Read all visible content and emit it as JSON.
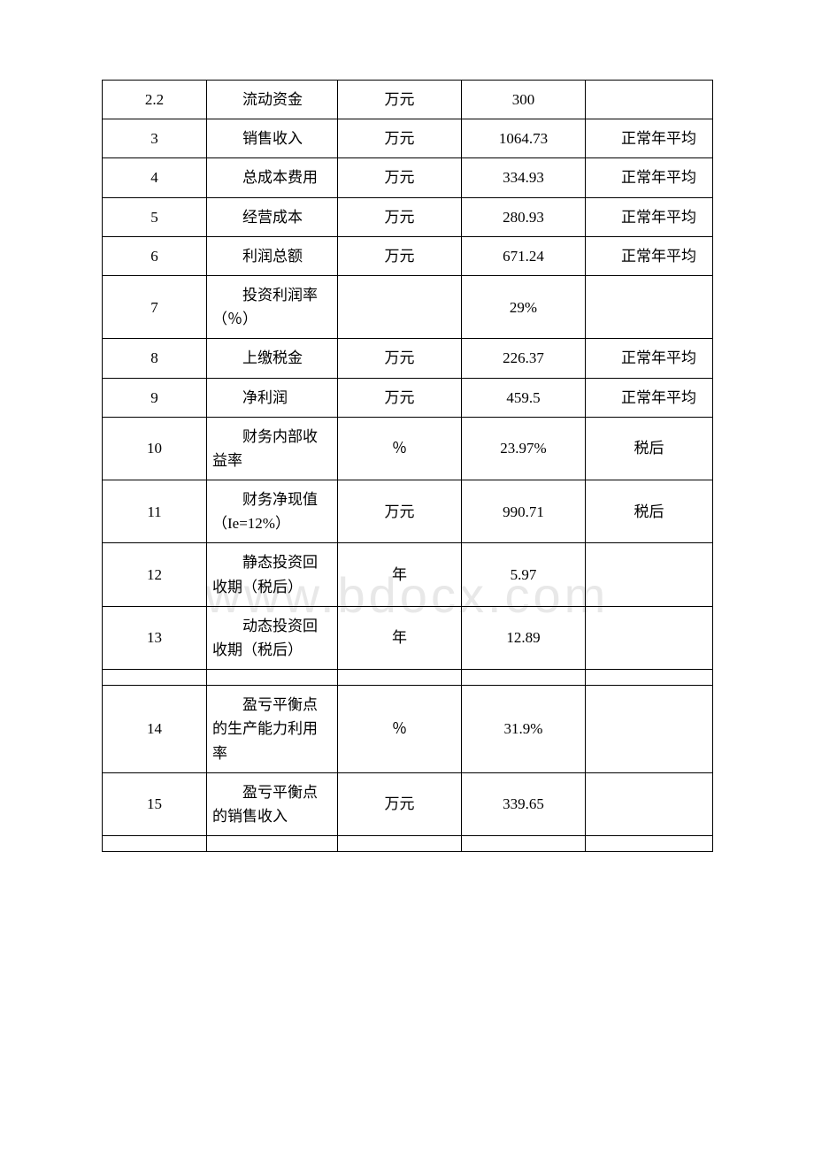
{
  "watermark": "www.bdocx.com",
  "rows": [
    {
      "num": "2.2",
      "name": "流动资金",
      "unit": "万元",
      "value": "300",
      "note": ""
    },
    {
      "num": "3",
      "name": "销售收入",
      "unit": "万元",
      "value": "1064.73",
      "note": "正常年平均"
    },
    {
      "num": "4",
      "name": "总成本费用",
      "unit": "万元",
      "value": "334.93",
      "note": "正常年平均"
    },
    {
      "num": "5",
      "name": "经营成本",
      "unit": "万元",
      "value": "280.93",
      "note": "正常年平均"
    },
    {
      "num": "6",
      "name": "利润总额",
      "unit": "万元",
      "value": "671.24",
      "note": "正常年平均"
    },
    {
      "num": "7",
      "name": "投资利润率（％）",
      "unit": "",
      "value": "29%",
      "note": ""
    },
    {
      "num": "8",
      "name": "上缴税金",
      "unit": "万元",
      "value": "226.37",
      "note": "正常年平均"
    },
    {
      "num": "9",
      "name": "净利润",
      "unit": "万元",
      "value": "459.5",
      "note": "正常年平均"
    },
    {
      "num": "10",
      "name": "财务内部收益率",
      "unit": "％",
      "value": "23.97%",
      "note": "税后",
      "noteCenter": true
    },
    {
      "num": "11",
      "name": "财务净现值（Ie=12%）",
      "unit": "万元",
      "value": "990.71",
      "note": "税后",
      "noteCenter": true
    },
    {
      "num": "12",
      "name": "静态投资回收期（税后）",
      "unit": "年",
      "value": "5.97",
      "note": ""
    },
    {
      "num": "13",
      "name": "动态投资回收期（税后）",
      "unit": "年",
      "value": "12.89",
      "note": ""
    },
    {
      "spacer": true
    },
    {
      "num": "14",
      "name": "盈亏平衡点的生产能力利用率",
      "unit": "％",
      "value": "31.9%",
      "note": ""
    },
    {
      "num": "15",
      "name": "盈亏平衡点的销售收入",
      "unit": "万元",
      "value": "339.65",
      "note": ""
    },
    {
      "spacer": true
    }
  ]
}
